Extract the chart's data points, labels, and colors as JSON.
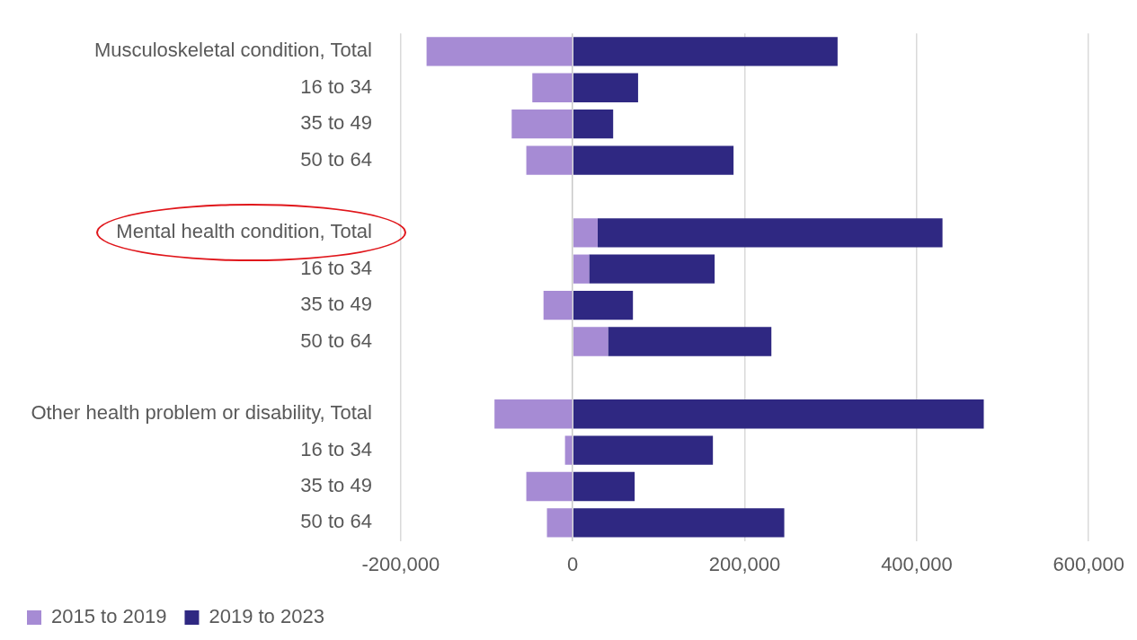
{
  "chart_data": {
    "type": "bar",
    "orientation": "horizontal",
    "stacked": true,
    "categories": [
      "Musculoskeletal condition, Total",
      "16 to 34",
      "35 to 49",
      "50 to 64",
      null,
      "Mental health condition, Total",
      "16 to 34",
      "35 to 49",
      "50 to 64",
      null,
      "Other health problem or disability, Total",
      "16 to 34",
      "35 to 49",
      "50 to 64"
    ],
    "series": [
      {
        "name": "2015 to 2019",
        "color": "#a68bd4",
        "values": [
          -170000,
          -47000,
          -71000,
          -54000,
          null,
          29000,
          19000,
          -34000,
          41000,
          null,
          -91000,
          -9000,
          -54000,
          -30000
        ]
      },
      {
        "name": "2019 to 2023",
        "color": "#2f2882",
        "values": [
          308000,
          76000,
          47000,
          187000,
          null,
          401000,
          146000,
          70000,
          190000,
          null,
          478000,
          163000,
          72000,
          246000
        ]
      }
    ],
    "xlim": [
      -200000,
      600000
    ],
    "xticks": [
      {
        "value": -200000,
        "label": "-200,000"
      },
      0,
      {
        "value": 200000,
        "label": "200,000"
      },
      {
        "value": 400000,
        "label": "400,000"
      },
      {
        "value": 600000,
        "label": "600,000"
      }
    ],
    "grid": "x",
    "legend": "bottom"
  }
}
